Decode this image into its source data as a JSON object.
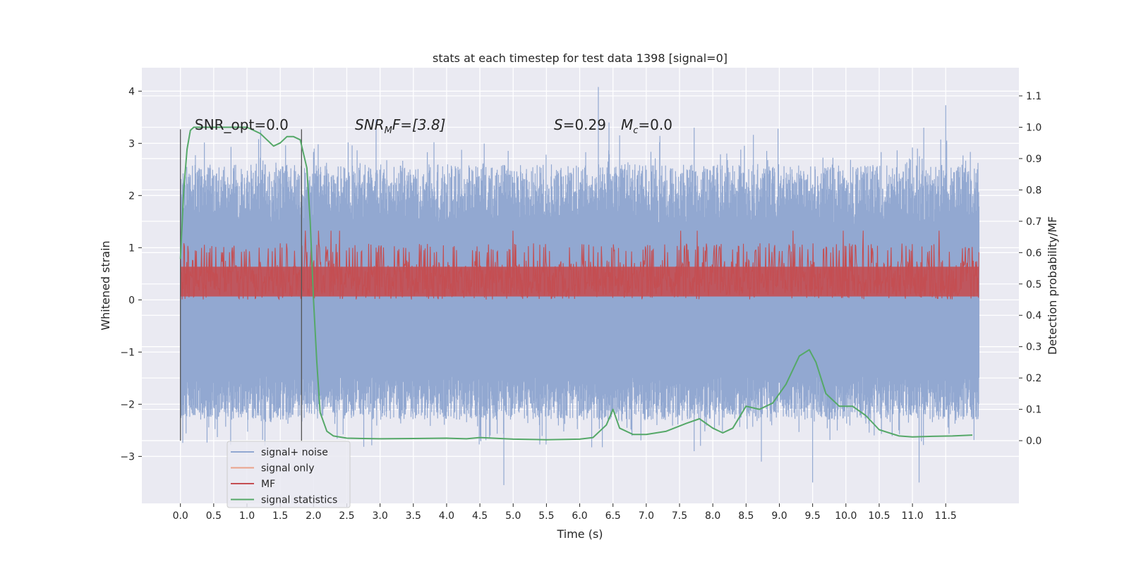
{
  "chart_data": {
    "type": "line",
    "title": "stats at each timestep for test data 1398 [signal=0]",
    "xlabel": "Time (s)",
    "ylabel": "Whitened strain",
    "y2label": "Detection probability/MF",
    "xlim": [
      -0.58,
      12.6
    ],
    "ylim": [
      -3.9,
      4.45
    ],
    "y2lim": [
      -0.2,
      1.19
    ],
    "xticks": [
      0.0,
      0.5,
      1.0,
      1.5,
      2.0,
      2.5,
      3.0,
      3.5,
      4.0,
      4.5,
      5.0,
      5.5,
      6.0,
      6.5,
      7.0,
      7.5,
      8.0,
      8.5,
      9.0,
      9.5,
      10.0,
      10.5,
      11.0,
      11.5
    ],
    "xtick_labels": [
      "0.0",
      "0.5",
      "1.0",
      "1.5",
      "2.0",
      "2.5",
      "3.0",
      "3.5",
      "4.0",
      "4.5",
      "5.0",
      "5.5",
      "6.0",
      "6.5",
      "7.0",
      "7.5",
      "8.0",
      "8.5",
      "9.0",
      "9.5",
      "10.0",
      "10.5",
      "11.0",
      "11.5"
    ],
    "yticks": [
      -3,
      -2,
      -1,
      0,
      1,
      2,
      3,
      4
    ],
    "ytick_labels": [
      "−3",
      "−2",
      "−1",
      "0",
      "1",
      "2",
      "3",
      "4"
    ],
    "y2ticks": [
      0.0,
      0.1,
      0.2,
      0.3,
      0.4,
      0.5,
      0.6,
      0.7,
      0.8,
      0.9,
      1.0,
      1.1
    ],
    "y2tick_labels": [
      "0.0",
      "0.1",
      "0.2",
      "0.3",
      "0.4",
      "0.5",
      "0.6",
      "0.7",
      "0.8",
      "0.9",
      "1.0",
      "1.1"
    ],
    "grid": true,
    "legend_position": "bottom-left",
    "annotations": {
      "snr_opt": "SNR_opt=0.0",
      "snr_mf_label": "SNR",
      "snr_mf_sub": "M",
      "snr_mf_value": "F=[3.8]",
      "s_label": "S",
      "s_value": "=0.29",
      "mc_label": "M",
      "mc_sub": "c",
      "mc_value": "=0.0"
    },
    "vertical_lines": [
      {
        "x": 0.0,
        "y_range": [
          -2.7,
          3.27
        ]
      },
      {
        "x": 1.82,
        "y_range": [
          -2.7,
          3.27
        ]
      }
    ],
    "series": [
      {
        "name": "signal+ noise",
        "color": "#92a8d1",
        "axis": "left",
        "x_range": [
          0.0,
          12.0
        ],
        "envelope_upper": 2.6,
        "envelope_lower": -2.3,
        "peaks": [
          [
            6.28,
            4.08
          ],
          [
            11.5,
            3.73
          ],
          [
            2.94,
            3.45
          ],
          [
            6.44,
            3.4
          ],
          [
            7.72,
            3.3
          ],
          [
            8.98,
            3.28
          ],
          [
            11.17,
            3.3
          ]
        ],
        "troughs": [
          [
            7.72,
            -2.9
          ],
          [
            7.88,
            -2.52
          ],
          [
            8.73,
            -3.1
          ],
          [
            9.5,
            -3.5
          ],
          [
            11.1,
            -3.5
          ],
          [
            4.86,
            -3.55
          ]
        ]
      },
      {
        "name": "signal only",
        "color": "#eaa189",
        "axis": "left",
        "values": []
      },
      {
        "name": "MF",
        "color": "#c44e52",
        "axis": "right",
        "x_range": [
          0.0,
          12.0
        ],
        "baseline": 0.49,
        "upper": 0.63,
        "lower": 0.45
      },
      {
        "name": "signal statistics",
        "color": "#55a868",
        "axis": "right",
        "x": [
          0.0,
          0.05,
          0.1,
          0.15,
          0.2,
          0.3,
          0.5,
          0.8,
          1.0,
          1.1,
          1.2,
          1.3,
          1.4,
          1.5,
          1.6,
          1.7,
          1.8,
          1.9,
          1.95,
          2.0,
          2.05,
          2.1,
          2.2,
          2.3,
          2.5,
          3.0,
          3.5,
          4.0,
          4.3,
          4.5,
          5.0,
          5.5,
          6.0,
          6.2,
          6.4,
          6.5,
          6.6,
          6.8,
          7.0,
          7.3,
          7.6,
          7.8,
          8.0,
          8.15,
          8.3,
          8.5,
          8.7,
          8.9,
          9.1,
          9.3,
          9.45,
          9.55,
          9.7,
          9.9,
          10.1,
          10.3,
          10.5,
          10.8,
          11.0,
          11.3,
          11.6,
          11.9
        ],
        "y": [
          0.58,
          0.8,
          0.93,
          0.99,
          1.0,
          1.0,
          1.0,
          1.0,
          1.0,
          0.99,
          0.98,
          0.96,
          0.94,
          0.95,
          0.97,
          0.97,
          0.96,
          0.87,
          0.7,
          0.45,
          0.25,
          0.09,
          0.03,
          0.015,
          0.008,
          0.006,
          0.007,
          0.008,
          0.006,
          0.01,
          0.005,
          0.003,
          0.005,
          0.01,
          0.05,
          0.1,
          0.04,
          0.02,
          0.02,
          0.03,
          0.055,
          0.07,
          0.04,
          0.025,
          0.04,
          0.11,
          0.1,
          0.12,
          0.18,
          0.27,
          0.29,
          0.25,
          0.15,
          0.11,
          0.11,
          0.08,
          0.035,
          0.015,
          0.012,
          0.014,
          0.015,
          0.018
        ]
      }
    ]
  }
}
